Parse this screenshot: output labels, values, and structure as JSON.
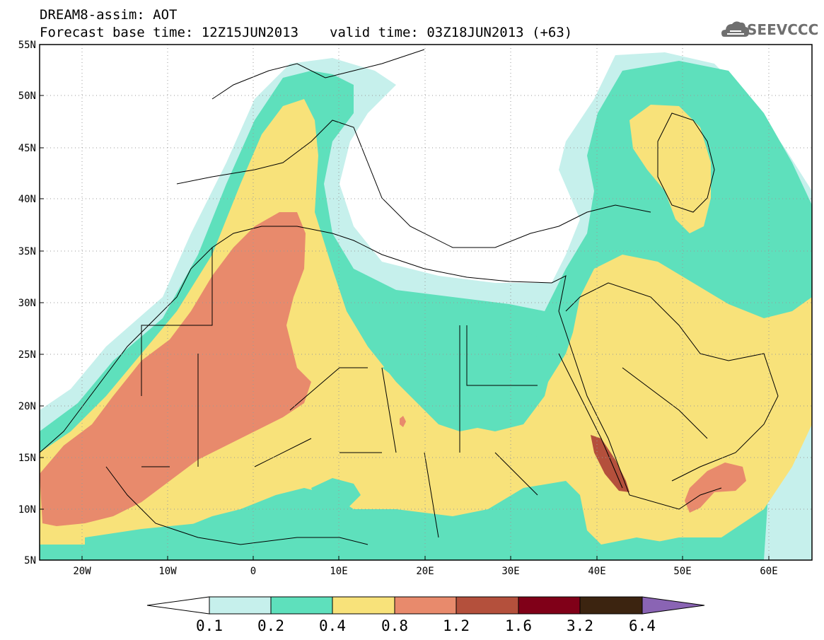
{
  "header": {
    "title": "DREAM8-assim: AOT",
    "base_time": "Forecast base time: 12Z15JUN2013",
    "valid_time": "valid time: 03Z18JUN2013 (+63)"
  },
  "logo": {
    "text": "SEEVCCC",
    "icon": "cloud-icon"
  },
  "axes": {
    "lat_labels": [
      "5N",
      "10N",
      "15N",
      "20N",
      "25N",
      "30N",
      "35N",
      "40N",
      "45N",
      "50N",
      "55N"
    ],
    "lon_labels": [
      "20W",
      "10W",
      "0",
      "10E",
      "20E",
      "30E",
      "40E",
      "50E",
      "60E"
    ]
  },
  "colorbar": {
    "labels": [
      "0.1",
      "0.2",
      "0.4",
      "0.8",
      "1.2",
      "1.6",
      "3.2",
      "6.4"
    ],
    "colors": [
      "#c6f0ec",
      "#5ee0bc",
      "#f8e27a",
      "#e88a6c",
      "#b4503c",
      "#800018",
      "#3c2410",
      "#8a64b4"
    ],
    "under_color": "#ffffff"
  },
  "fill_colors": {
    "c01": "#c6f0ec",
    "c02": "#5ee0bc",
    "c04": "#f8e27a",
    "c08": "#e88a6c",
    "c12": "#b4503c"
  }
}
